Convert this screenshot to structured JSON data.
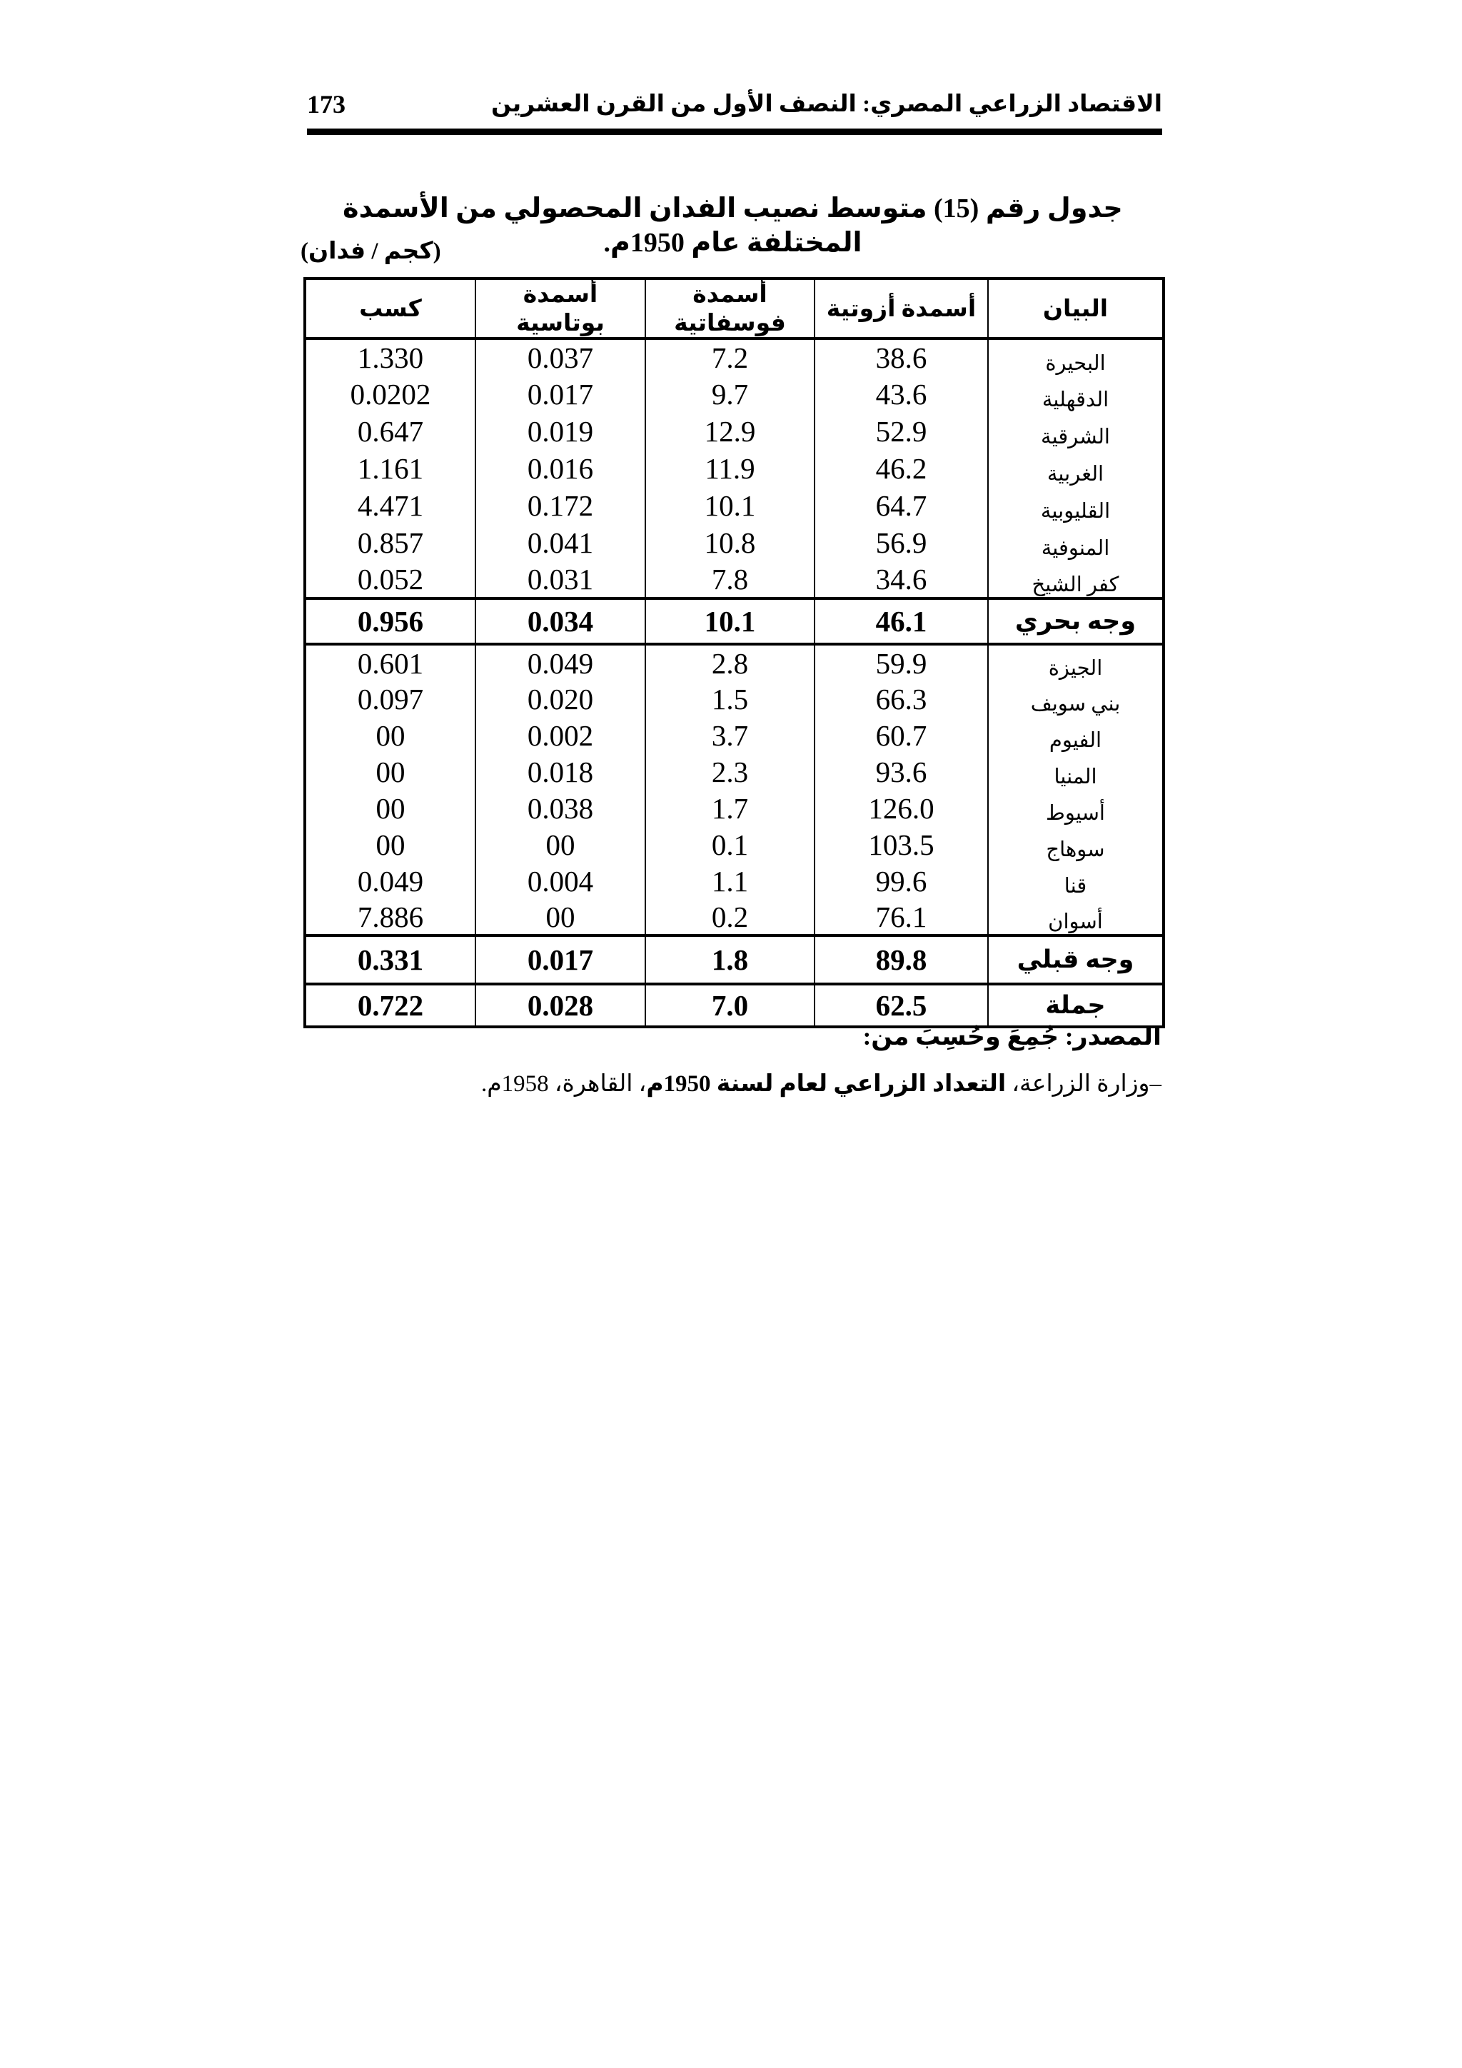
{
  "page": {
    "number": "173",
    "running_header": "الاقتصاد الزراعي المصري: النصف الأول من القرن العشرين"
  },
  "table": {
    "title": "جدول رقم (15) متوسط نصيب الفدان المحصولي من الأسمدة المختلفة عام 1950م.",
    "unit": "(كجم / فدان)",
    "columns": {
      "name": "البيان",
      "nitrogen": "أسمدة أزوتية",
      "phosphate": "أسمدة فوسفاتية",
      "potash": "أسمدة بوتاسية",
      "cake": "كسب"
    },
    "lower_egypt": [
      {
        "name": "البحيرة",
        "nitrogen": "38.6",
        "phosphate": "7.2",
        "potash": "0.037",
        "cake": "1.330"
      },
      {
        "name": "الدقهلية",
        "nitrogen": "43.6",
        "phosphate": "9.7",
        "potash": "0.017",
        "cake": "0.0202"
      },
      {
        "name": "الشرقية",
        "nitrogen": "52.9",
        "phosphate": "12.9",
        "potash": "0.019",
        "cake": "0.647"
      },
      {
        "name": "الغربية",
        "nitrogen": "46.2",
        "phosphate": "11.9",
        "potash": "0.016",
        "cake": "1.161"
      },
      {
        "name": "القليوبية",
        "nitrogen": "64.7",
        "phosphate": "10.1",
        "potash": "0.172",
        "cake": "4.471"
      },
      {
        "name": "المنوفية",
        "nitrogen": "56.9",
        "phosphate": "10.8",
        "potash": "0.041",
        "cake": "0.857"
      },
      {
        "name": "كفر الشيخ",
        "nitrogen": "34.6",
        "phosphate": "7.8",
        "potash": "0.031",
        "cake": "0.052"
      }
    ],
    "lower_egypt_total": {
      "name": "وجه بحري",
      "nitrogen": "46.1",
      "phosphate": "10.1",
      "potash": "0.034",
      "cake": "0.956"
    },
    "upper_egypt": [
      {
        "name": "الجيزة",
        "nitrogen": "59.9",
        "phosphate": "2.8",
        "potash": "0.049",
        "cake": "0.601"
      },
      {
        "name": "بني سويف",
        "nitrogen": "66.3",
        "phosphate": "1.5",
        "potash": "0.020",
        "cake": "0.097"
      },
      {
        "name": "الفيوم",
        "nitrogen": "60.7",
        "phosphate": "3.7",
        "potash": "0.002",
        "cake": "00"
      },
      {
        "name": "المنيا",
        "nitrogen": "93.6",
        "phosphate": "2.3",
        "potash": "0.018",
        "cake": "00"
      },
      {
        "name": "أسيوط",
        "nitrogen": "126.0",
        "phosphate": "1.7",
        "potash": "0.038",
        "cake": "00"
      },
      {
        "name": "سوهاج",
        "nitrogen": "103.5",
        "phosphate": "0.1",
        "potash": "00",
        "cake": "00"
      },
      {
        "name": "قنا",
        "nitrogen": "99.6",
        "phosphate": "1.1",
        "potash": "0.004",
        "cake": "0.049"
      },
      {
        "name": "أسوان",
        "nitrogen": "76.1",
        "phosphate": "0.2",
        "potash": "00",
        "cake": "7.886"
      }
    ],
    "upper_egypt_total": {
      "name": "وجه قبلي",
      "nitrogen": "89.8",
      "phosphate": "1.8",
      "potash": "0.017",
      "cake": "0.331"
    },
    "grand_total": {
      "name": "جملة",
      "nitrogen": "62.5",
      "phosphate": "7.0",
      "potash": "0.028",
      "cake": "0.722"
    }
  },
  "source": {
    "heading": "المصدر: جُمِعَ وحُسِبَ من:",
    "ref_prefix": "–وزارة الزراعة، ",
    "ref_bold": "التعداد الزراعي لعام لسنة 1950م",
    "ref_suffix": "، القاهرة، 1958م."
  }
}
